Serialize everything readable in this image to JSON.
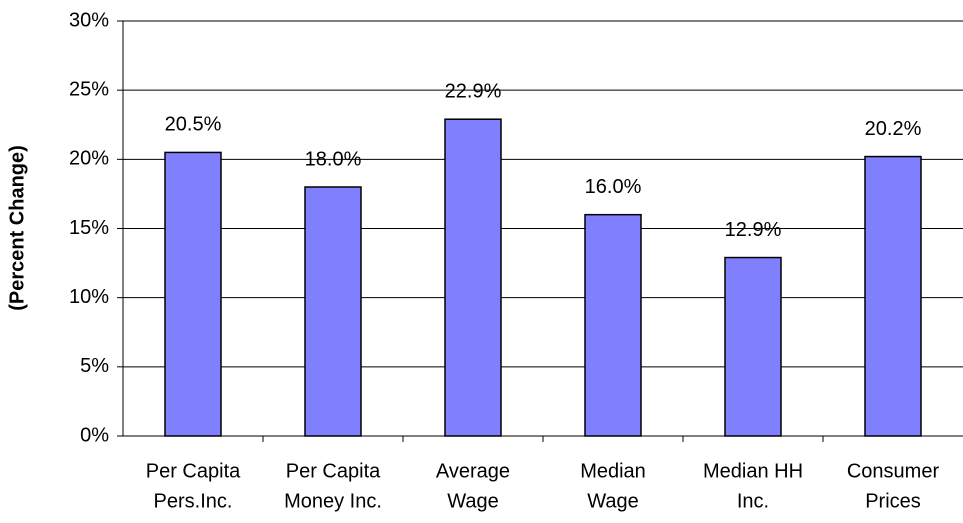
{
  "chart_data": {
    "type": "bar",
    "y_label": "(Percent Change)",
    "categories": [
      [
        "Per Capita",
        "Pers.Inc."
      ],
      [
        "Per Capita",
        "Money Inc."
      ],
      [
        "Average",
        "Wage"
      ],
      [
        "Median",
        "Wage"
      ],
      [
        "Median HH",
        "Inc."
      ],
      [
        "Consumer",
        "Prices"
      ]
    ],
    "values": [
      20.5,
      18.0,
      22.9,
      16.0,
      12.9,
      20.2
    ],
    "value_labels": [
      "20.5%",
      "18.0%",
      "22.9%",
      "16.0%",
      "12.9%",
      "20.2%"
    ],
    "color": "#8080ff",
    "ylim": [
      0,
      30
    ],
    "yticks": [
      {
        "value": 0,
        "label": "0%"
      },
      {
        "value": 5,
        "label": "5%"
      },
      {
        "value": 10,
        "label": "10%"
      },
      {
        "value": 15,
        "label": "15%"
      },
      {
        "value": 20,
        "label": "20%"
      },
      {
        "value": 25,
        "label": "25%"
      },
      {
        "value": 30,
        "label": "30%"
      }
    ],
    "grid": true
  }
}
